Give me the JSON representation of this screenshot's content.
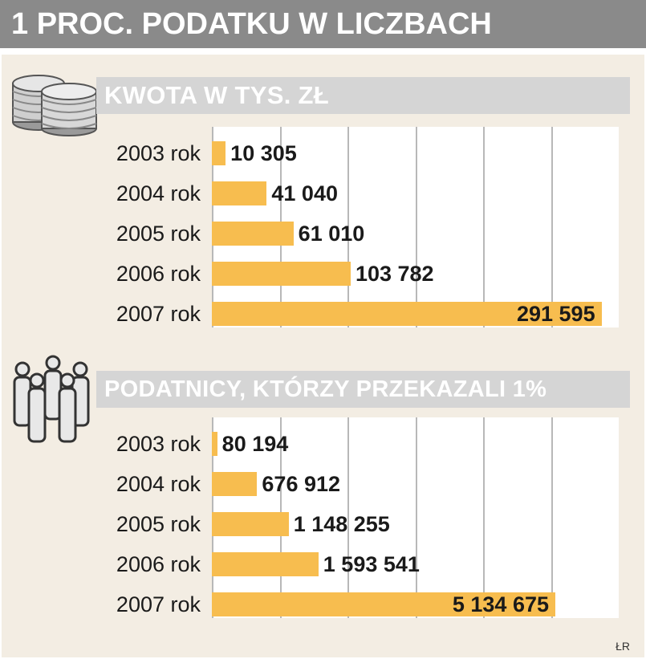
{
  "title": "1 PROC. PODATKU W LICZBACH",
  "source": "ŁR",
  "icons": [
    "coins-icon",
    "people-icon"
  ],
  "colors": {
    "bar": "#f7bd4f",
    "title_bg": "#8a8a8a",
    "section_bg": "#d5d5d5",
    "panel_bg": "#f3ede3"
  },
  "chart_data": [
    {
      "type": "bar",
      "orientation": "horizontal",
      "title": "KWOTA W TYS. ZŁ",
      "categories": [
        "2003 rok",
        "2004 rok",
        "2005 rok",
        "2006 rok",
        "2007 rok"
      ],
      "values": [
        10305,
        41040,
        61010,
        103782,
        291595
      ],
      "labels": [
        "10 305",
        "41 040",
        "61 010",
        "103 782",
        "291 595"
      ],
      "xlim": [
        0,
        300000
      ],
      "grid": true
    },
    {
      "type": "bar",
      "orientation": "horizontal",
      "title": "PODATNICY, KTÓRZY PRZEKAZALI 1%",
      "categories": [
        "2003 rok",
        "2004 rok",
        "2005 rok",
        "2006 rok",
        "2007 rok"
      ],
      "values": [
        80194,
        676912,
        1148255,
        1593541,
        5134675
      ],
      "labels": [
        "80 194",
        "676 912",
        "1 148 255",
        "1 593 541",
        "5 134 675"
      ],
      "xlim": [
        0,
        6000000
      ],
      "grid": true
    }
  ]
}
